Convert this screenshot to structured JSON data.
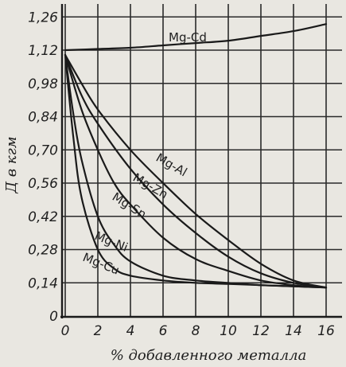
{
  "chart_data": {
    "type": "line",
    "xlabel": "% добавленного металла",
    "ylabel": "Д в кгм",
    "xlim": [
      0,
      16.8
    ],
    "ylim": [
      0,
      1.31
    ],
    "x_ticks": [
      0,
      2,
      4,
      6,
      8,
      10,
      12,
      14,
      16
    ],
    "x_tick_labels": [
      "0",
      "2",
      "4",
      "6",
      "8",
      "10",
      "12",
      "14",
      "16"
    ],
    "y_ticks": [
      0,
      0.14,
      0.28,
      0.42,
      0.56,
      0.7,
      0.84,
      0.98,
      1.12,
      1.26
    ],
    "y_tick_labels": [
      "0",
      "0,14",
      "0,28",
      "0,42",
      "0,56",
      "0,70",
      "0,84",
      "0,98",
      "1,12",
      "1,26"
    ],
    "grid": true,
    "series": [
      {
        "name": "Mg-Cd",
        "x": [
          0,
          2,
          4,
          6,
          8,
          10,
          12,
          14,
          16
        ],
        "y": [
          1.12,
          1.125,
          1.13,
          1.14,
          1.15,
          1.16,
          1.18,
          1.2,
          1.23
        ]
      },
      {
        "name": "Mg-Al",
        "x": [
          0,
          1,
          2,
          4,
          6,
          8,
          10,
          12,
          14,
          16
        ],
        "y": [
          1.1,
          0.98,
          0.87,
          0.7,
          0.56,
          0.43,
          0.32,
          0.22,
          0.15,
          0.12
        ]
      },
      {
        "name": "Mg-Zn",
        "x": [
          0,
          1,
          2,
          4,
          6,
          8,
          10,
          12,
          14,
          16
        ],
        "y": [
          1.1,
          0.93,
          0.81,
          0.62,
          0.47,
          0.35,
          0.25,
          0.18,
          0.14,
          0.12
        ]
      },
      {
        "name": "Mg-Sn",
        "x": [
          0,
          1,
          2,
          3,
          4,
          6,
          8,
          10,
          12,
          14,
          16
        ],
        "y": [
          1.1,
          0.87,
          0.7,
          0.56,
          0.47,
          0.33,
          0.24,
          0.19,
          0.15,
          0.13,
          0.12
        ]
      },
      {
        "name": "Mg-Ni",
        "x": [
          0,
          0.5,
          1,
          2,
          3,
          4,
          6,
          8,
          10,
          12,
          14,
          16
        ],
        "y": [
          1.1,
          0.85,
          0.66,
          0.42,
          0.3,
          0.23,
          0.17,
          0.15,
          0.14,
          0.13,
          0.125,
          0.12
        ]
      },
      {
        "name": "Mg-Cu",
        "x": [
          0,
          0.5,
          1,
          2,
          3,
          4,
          6,
          8,
          10,
          12,
          14,
          16
        ],
        "y": [
          1.1,
          0.75,
          0.5,
          0.28,
          0.2,
          0.17,
          0.15,
          0.14,
          0.135,
          0.13,
          0.125,
          0.12
        ]
      }
    ]
  }
}
